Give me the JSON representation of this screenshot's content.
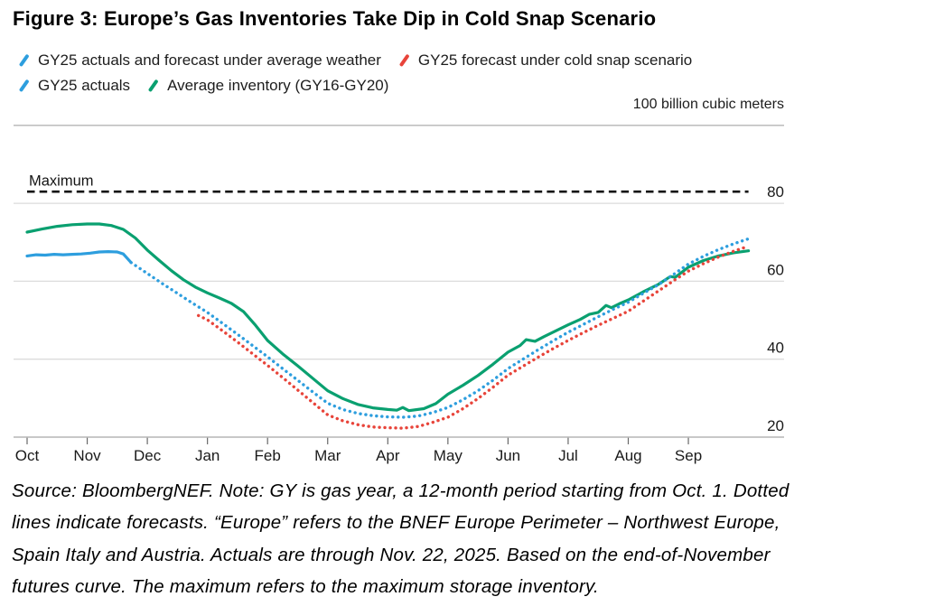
{
  "figure": {
    "title": "Figure 3: Europe’s Gas Inventories Take Dip in Cold Snap Scenario",
    "unit_label": "100 billion cubic meters",
    "source_lines": [
      "Source: BloombergNEF. Note: GY is gas year, a 12-month period starting from Oct. 1. Dotted",
      "lines indicate forecasts. “Europe” refers to the BNEF Europe Perimeter – Northwest Europe,",
      "Spain Italy and Austria. Actuals are through Nov. 22, 2025. Based on the end-of-November",
      "futures curve. The maximum refers to the maximum storage inventory."
    ]
  },
  "colors": {
    "blue": "#2d9ede",
    "red": "#e8443a",
    "green": "#0aa070",
    "grid": "#dcdcdc",
    "frame": "#b5b5b5",
    "tick": "#686868",
    "axis_text": "#1a1a1a",
    "max_line": "#111111"
  },
  "legend": {
    "rows": [
      [
        {
          "label": "GY25 actuals and forecast under average weather",
          "color": "#2d9ede"
        },
        {
          "label": "GY25 forecast under cold snap scenario",
          "color": "#e8443a"
        }
      ],
      [
        {
          "label": "GY25 actuals",
          "color": "#2d9ede"
        },
        {
          "label": "Average inventory (GY16-GY20)",
          "color": "#0aa070"
        }
      ]
    ]
  },
  "chart_data": {
    "type": "line",
    "title": "Europe gas inventories by gas year (billion cubic meters)",
    "x_unit": "months from Oct 1",
    "categories": [
      "Oct",
      "Nov",
      "Dec",
      "Jan",
      "Feb",
      "Mar",
      "Apr",
      "May",
      "Jun",
      "Jul",
      "Aug",
      "Sep"
    ],
    "y_ticks": [
      20,
      40,
      60,
      80
    ],
    "ylim": [
      20,
      100
    ],
    "grid": "horizontal",
    "legend_position": "top",
    "annotations": [
      {
        "label": "Maximum",
        "value": 83,
        "style": "dashed"
      }
    ],
    "series": [
      {
        "name": "Average inventory (GY16-GY20)",
        "color": "#0aa070",
        "style": "solid",
        "points": [
          [
            0,
            72.6
          ],
          [
            0.25,
            73.4
          ],
          [
            0.5,
            74.1
          ],
          [
            0.75,
            74.5
          ],
          [
            1.0,
            74.7
          ],
          [
            1.2,
            74.7
          ],
          [
            1.4,
            74.3
          ],
          [
            1.6,
            73.3
          ],
          [
            1.8,
            71.1
          ],
          [
            2.0,
            68.0
          ],
          [
            2.2,
            65.3
          ],
          [
            2.4,
            62.7
          ],
          [
            2.6,
            60.4
          ],
          [
            2.8,
            58.5
          ],
          [
            3.0,
            57.0
          ],
          [
            3.2,
            55.7
          ],
          [
            3.4,
            54.3
          ],
          [
            3.6,
            52.2
          ],
          [
            3.8,
            48.7
          ],
          [
            4.0,
            44.8
          ],
          [
            4.25,
            41.4
          ],
          [
            4.5,
            38.3
          ],
          [
            4.75,
            35.1
          ],
          [
            5.0,
            31.9
          ],
          [
            5.25,
            29.9
          ],
          [
            5.5,
            28.4
          ],
          [
            5.75,
            27.5
          ],
          [
            6.0,
            27.1
          ],
          [
            6.15,
            26.9
          ],
          [
            6.25,
            27.6
          ],
          [
            6.35,
            26.8
          ],
          [
            6.6,
            27.3
          ],
          [
            6.8,
            28.6
          ],
          [
            7.0,
            31.0
          ],
          [
            7.25,
            33.3
          ],
          [
            7.5,
            35.8
          ],
          [
            7.75,
            38.7
          ],
          [
            8.0,
            41.8
          ],
          [
            8.2,
            43.5
          ],
          [
            8.3,
            45.0
          ],
          [
            8.45,
            44.6
          ],
          [
            8.6,
            45.8
          ],
          [
            8.8,
            47.3
          ],
          [
            9.0,
            48.8
          ],
          [
            9.2,
            50.2
          ],
          [
            9.35,
            51.5
          ],
          [
            9.5,
            52.0
          ],
          [
            9.63,
            53.8
          ],
          [
            9.72,
            53.2
          ],
          [
            9.85,
            54.2
          ],
          [
            10.0,
            55.2
          ],
          [
            10.25,
            57.3
          ],
          [
            10.5,
            59.2
          ],
          [
            10.7,
            61.2
          ],
          [
            10.78,
            61.0
          ],
          [
            11.0,
            63.6
          ],
          [
            11.25,
            65.3
          ],
          [
            11.5,
            66.5
          ],
          [
            11.75,
            67.3
          ],
          [
            12.0,
            67.8
          ]
        ]
      },
      {
        "name": "GY25 forecast under cold snap scenario",
        "color": "#e8443a",
        "style": "dotted",
        "points": [
          [
            2.85,
            51.2
          ],
          [
            3.0,
            50.1
          ],
          [
            3.25,
            47.3
          ],
          [
            3.5,
            44.4
          ],
          [
            3.75,
            41.4
          ],
          [
            4.0,
            38.4
          ],
          [
            4.25,
            35.3
          ],
          [
            4.5,
            32.1
          ],
          [
            4.75,
            28.9
          ],
          [
            5.0,
            25.7
          ],
          [
            5.25,
            24.2
          ],
          [
            5.5,
            23.2
          ],
          [
            5.75,
            22.6
          ],
          [
            6.0,
            22.4
          ],
          [
            6.25,
            22.3
          ],
          [
            6.5,
            22.7
          ],
          [
            6.75,
            23.8
          ],
          [
            7.0,
            25.1
          ],
          [
            7.25,
            27.3
          ],
          [
            7.5,
            29.9
          ],
          [
            7.75,
            32.8
          ],
          [
            8.0,
            35.9
          ],
          [
            8.25,
            38.2
          ],
          [
            8.5,
            40.5
          ],
          [
            8.75,
            42.7
          ],
          [
            9.0,
            44.8
          ],
          [
            9.25,
            46.8
          ],
          [
            9.5,
            48.7
          ],
          [
            9.75,
            50.5
          ],
          [
            10.0,
            52.3
          ],
          [
            10.25,
            54.9
          ],
          [
            10.5,
            57.5
          ],
          [
            10.75,
            60.1
          ],
          [
            11.0,
            62.6
          ],
          [
            11.25,
            64.5
          ],
          [
            11.5,
            66.2
          ],
          [
            11.75,
            67.7
          ],
          [
            12.0,
            69.0
          ]
        ]
      },
      {
        "name": "GY25 actuals and forecast under average weather",
        "color": "#2d9ede",
        "style": "dotted",
        "points": [
          [
            1.73,
            64.8
          ],
          [
            2.0,
            62.0
          ],
          [
            2.25,
            59.4
          ],
          [
            2.5,
            56.9
          ],
          [
            2.75,
            54.4
          ],
          [
            3.0,
            52.0
          ],
          [
            3.25,
            49.2
          ],
          [
            3.5,
            46.4
          ],
          [
            3.75,
            43.5
          ],
          [
            4.0,
            40.6
          ],
          [
            4.25,
            37.6
          ],
          [
            4.5,
            34.6
          ],
          [
            4.75,
            31.6
          ],
          [
            5.0,
            28.7
          ],
          [
            5.25,
            27.1
          ],
          [
            5.5,
            26.1
          ],
          [
            5.75,
            25.5
          ],
          [
            6.0,
            25.2
          ],
          [
            6.25,
            25.1
          ],
          [
            6.5,
            25.4
          ],
          [
            6.75,
            26.3
          ],
          [
            7.0,
            27.6
          ],
          [
            7.25,
            29.6
          ],
          [
            7.5,
            31.9
          ],
          [
            7.75,
            34.6
          ],
          [
            8.0,
            37.6
          ],
          [
            8.25,
            40.0
          ],
          [
            8.5,
            42.4
          ],
          [
            8.75,
            44.7
          ],
          [
            9.0,
            46.9
          ],
          [
            9.25,
            48.9
          ],
          [
            9.5,
            50.9
          ],
          [
            9.75,
            52.8
          ],
          [
            10.0,
            54.6
          ],
          [
            10.25,
            56.9
          ],
          [
            10.5,
            59.1
          ],
          [
            10.75,
            61.7
          ],
          [
            11.0,
            64.4
          ],
          [
            11.25,
            66.4
          ],
          [
            11.5,
            68.1
          ],
          [
            11.75,
            69.6
          ],
          [
            12.0,
            70.9
          ]
        ]
      },
      {
        "name": "GY25 actuals",
        "color": "#2d9ede",
        "style": "solid",
        "points": [
          [
            0,
            66.5
          ],
          [
            0.15,
            66.8
          ],
          [
            0.3,
            66.7
          ],
          [
            0.45,
            66.9
          ],
          [
            0.6,
            66.8
          ],
          [
            0.75,
            66.9
          ],
          [
            0.9,
            67.0
          ],
          [
            1.05,
            67.2
          ],
          [
            1.2,
            67.5
          ],
          [
            1.35,
            67.6
          ],
          [
            1.5,
            67.5
          ],
          [
            1.6,
            67.0
          ],
          [
            1.73,
            64.8
          ]
        ]
      }
    ]
  }
}
